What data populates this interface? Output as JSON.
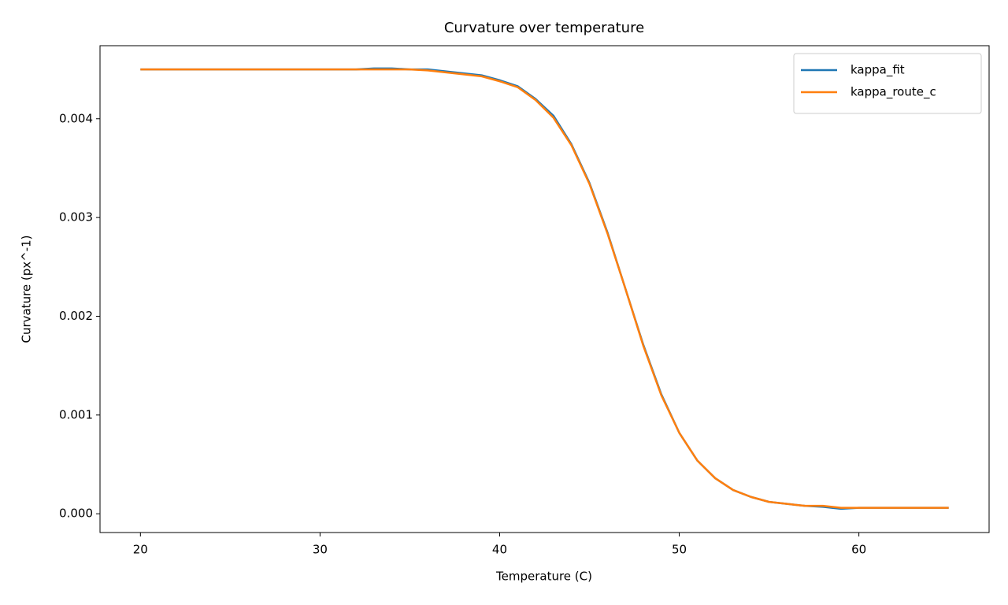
{
  "chart_data": {
    "type": "line",
    "title": "Curvature over temperature",
    "xlabel": "Temperature (C)",
    "ylabel": "Curvature (px^-1)",
    "x": [
      20,
      21,
      22,
      23,
      24,
      25,
      26,
      27,
      28,
      29,
      30,
      31,
      32,
      33,
      34,
      35,
      36,
      37,
      38,
      39,
      40,
      41,
      42,
      43,
      44,
      45,
      46,
      47,
      48,
      49,
      50,
      51,
      52,
      53,
      54,
      55,
      56,
      57,
      58,
      59,
      60,
      61,
      62,
      63,
      64,
      65
    ],
    "series": [
      {
        "name": "kappa_fit",
        "color": "#1f77b4",
        "values": [
          0.0045,
          0.0045,
          0.0045,
          0.0045,
          0.0045,
          0.0045,
          0.0045,
          0.0045,
          0.0045,
          0.0045,
          0.0045,
          0.0045,
          0.0045,
          0.00451,
          0.00451,
          0.0045,
          0.0045,
          0.00448,
          0.00446,
          0.00444,
          0.00439,
          0.00433,
          0.0042,
          0.00403,
          0.00374,
          0.00335,
          0.00285,
          0.00228,
          0.00171,
          0.00121,
          0.00082,
          0.00054,
          0.00036,
          0.00024,
          0.00017,
          0.00012,
          0.0001,
          8e-05,
          7e-05,
          5e-05,
          6e-05,
          6e-05,
          6e-05,
          6e-05,
          6e-05,
          6e-05
        ]
      },
      {
        "name": "kappa_route_c",
        "color": "#ff7f0e",
        "values": [
          0.0045,
          0.0045,
          0.0045,
          0.0045,
          0.0045,
          0.0045,
          0.0045,
          0.0045,
          0.0045,
          0.0045,
          0.0045,
          0.0045,
          0.0045,
          0.0045,
          0.0045,
          0.0045,
          0.00449,
          0.00447,
          0.00445,
          0.00443,
          0.00438,
          0.00432,
          0.00419,
          0.00401,
          0.00373,
          0.00334,
          0.00284,
          0.00228,
          0.0017,
          0.0012,
          0.00082,
          0.00054,
          0.00036,
          0.00024,
          0.00017,
          0.00012,
          0.0001,
          8e-05,
          8e-05,
          6e-05,
          6e-05,
          6e-05,
          6e-05,
          6e-05,
          6e-05,
          6e-05
        ]
      }
    ],
    "xlim": [
      17.75,
      67.25
    ],
    "xticks": [
      20,
      30,
      40,
      50,
      60
    ],
    "ylim": [
      -0.00019,
      0.00474
    ],
    "yticks": [
      {
        "value": 0,
        "label": "0.000"
      },
      {
        "value": 0.001,
        "label": "0.001"
      },
      {
        "value": 0.002,
        "label": "0.002"
      },
      {
        "value": 0.003,
        "label": "0.003"
      },
      {
        "value": 0.004,
        "label": "0.004"
      }
    ],
    "grid": false,
    "legend": "upper right"
  }
}
